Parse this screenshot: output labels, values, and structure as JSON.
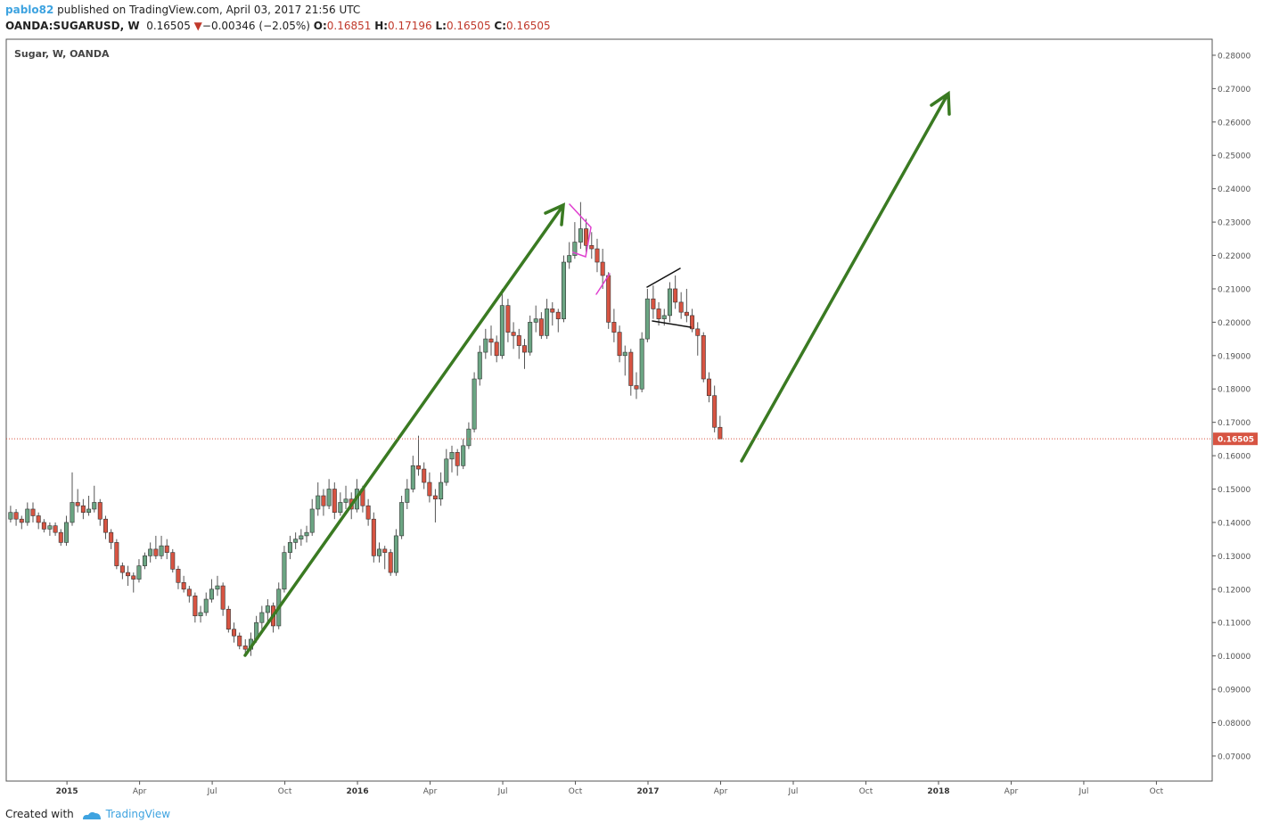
{
  "header": {
    "user": "pablo82",
    "published": " published on TradingView.com, April 03, 2017 21:56 UTC",
    "symbol": "OANDA:SUGARUSD, W",
    "price": "0.16505",
    "arrow": "▼",
    "change": "−0.00346 (−2.05%)",
    "o_label": "O:",
    "o": "0.16851",
    "h_label": "H:",
    "h": "0.17196",
    "l_label": "L:",
    "l": "0.16505",
    "c_label": "C:",
    "c": "0.16505"
  },
  "footer": {
    "created": "Created with",
    "brand": "TradingView"
  },
  "chart_data": {
    "type": "candlestick",
    "title": "Sugar, W, OANDA",
    "up_color": "#6ba583",
    "down_color": "#d75442",
    "last_price": 0.16505,
    "last_color": "#d75442",
    "xlim": [
      2014.791,
      2018.942
    ],
    "ylim": [
      0.0625,
      0.2848
    ],
    "xticks": [
      2015,
      {
        "value": 2015.25,
        "label": "Apr"
      },
      {
        "value": 2015.5,
        "label": "Jul"
      },
      {
        "value": 2015.75,
        "label": "Oct"
      },
      2016,
      {
        "value": 2016.25,
        "label": "Apr"
      },
      {
        "value": 2016.5,
        "label": "Jul"
      },
      {
        "value": 2016.75,
        "label": "Oct"
      },
      2017,
      {
        "value": 2017.25,
        "label": "Apr"
      },
      {
        "value": 2017.5,
        "label": "Jul"
      },
      {
        "value": 2017.75,
        "label": "Oct"
      },
      2018,
      {
        "value": 2018.25,
        "label": "Apr"
      },
      {
        "value": 2018.5,
        "label": "Jul"
      },
      {
        "value": 2018.75,
        "label": "Oct"
      }
    ],
    "yticks": [
      {
        "value": 0.07,
        "label": "0.07000"
      },
      {
        "value": 0.08,
        "label": "0.08000"
      },
      {
        "value": 0.09,
        "label": "0.09000"
      },
      {
        "value": 0.1,
        "label": "0.10000"
      },
      {
        "value": 0.11,
        "label": "0.11000"
      },
      {
        "value": 0.12,
        "label": "0.12000"
      },
      {
        "value": 0.13,
        "label": "0.13000"
      },
      {
        "value": 0.14,
        "label": "0.14000"
      },
      {
        "value": 0.15,
        "label": "0.15000"
      },
      {
        "value": 0.16,
        "label": "0.16000"
      },
      {
        "value": 0.17,
        "label": "0.17000"
      },
      {
        "value": 0.18,
        "label": "0.18000"
      },
      {
        "value": 0.19,
        "label": "0.19000"
      },
      {
        "value": 0.2,
        "label": "0.20000"
      },
      {
        "value": 0.21,
        "label": "0.21000"
      },
      {
        "value": 0.22,
        "label": "0.22000"
      },
      {
        "value": 0.23,
        "label": "0.23000"
      },
      {
        "value": 0.24,
        "label": "0.24000"
      },
      {
        "value": 0.25,
        "label": "0.25000"
      },
      {
        "value": 0.26,
        "label": "0.26000"
      },
      {
        "value": 0.27,
        "label": "0.27000"
      },
      {
        "value": 0.28,
        "label": "0.28000"
      }
    ],
    "x": [
      2014.806,
      2014.825,
      2014.844,
      2014.864,
      2014.883,
      2014.902,
      2014.921,
      2014.941,
      2014.96,
      2014.979,
      2014.998,
      2015.018,
      2015.037,
      2015.056,
      2015.075,
      2015.094,
      2015.114,
      2015.133,
      2015.152,
      2015.171,
      2015.191,
      2015.21,
      2015.229,
      2015.248,
      2015.268,
      2015.287,
      2015.306,
      2015.325,
      2015.344,
      2015.364,
      2015.383,
      2015.402,
      2015.421,
      2015.441,
      2015.46,
      2015.479,
      2015.498,
      2015.518,
      2015.537,
      2015.556,
      2015.575,
      2015.594,
      2015.614,
      2015.633,
      2015.652,
      2015.671,
      2015.691,
      2015.71,
      2015.729,
      2015.748,
      2015.768,
      2015.787,
      2015.806,
      2015.825,
      2015.844,
      2015.864,
      2015.883,
      2015.902,
      2015.921,
      2015.941,
      2015.96,
      2015.979,
      2015.998,
      2016.018,
      2016.037,
      2016.056,
      2016.075,
      2016.094,
      2016.114,
      2016.133,
      2016.152,
      2016.171,
      2016.191,
      2016.21,
      2016.229,
      2016.248,
      2016.268,
      2016.287,
      2016.306,
      2016.325,
      2016.344,
      2016.364,
      2016.383,
      2016.402,
      2016.421,
      2016.441,
      2016.46,
      2016.479,
      2016.498,
      2016.518,
      2016.537,
      2016.556,
      2016.575,
      2016.594,
      2016.614,
      2016.633,
      2016.652,
      2016.671,
      2016.691,
      2016.71,
      2016.729,
      2016.748,
      2016.768,
      2016.787,
      2016.806,
      2016.825,
      2016.844,
      2016.864,
      2016.883,
      2016.902,
      2016.921,
      2016.941,
      2016.96,
      2016.979,
      2016.998,
      2017.018,
      2017.037,
      2017.056,
      2017.075,
      2017.094,
      2017.114,
      2017.133,
      2017.152,
      2017.171,
      2017.191,
      2017.21,
      2017.229,
      2017.248
    ],
    "ohlc": [
      [
        0.141,
        0.145,
        0.14,
        0.143
      ],
      [
        0.143,
        0.144,
        0.139,
        0.141
      ],
      [
        0.141,
        0.142,
        0.138,
        0.14
      ],
      [
        0.14,
        0.146,
        0.139,
        0.144
      ],
      [
        0.144,
        0.146,
        0.14,
        0.142
      ],
      [
        0.142,
        0.143,
        0.138,
        0.14
      ],
      [
        0.14,
        0.141,
        0.137,
        0.138
      ],
      [
        0.138,
        0.14,
        0.136,
        0.139
      ],
      [
        0.139,
        0.14,
        0.136,
        0.137
      ],
      [
        0.137,
        0.138,
        0.133,
        0.134
      ],
      [
        0.134,
        0.142,
        0.133,
        0.14
      ],
      [
        0.14,
        0.155,
        0.139,
        0.146
      ],
      [
        0.146,
        0.15,
        0.143,
        0.145
      ],
      [
        0.145,
        0.147,
        0.141,
        0.143
      ],
      [
        0.143,
        0.148,
        0.142,
        0.144
      ],
      [
        0.144,
        0.151,
        0.143,
        0.146
      ],
      [
        0.146,
        0.147,
        0.139,
        0.141
      ],
      [
        0.141,
        0.142,
        0.135,
        0.137
      ],
      [
        0.137,
        0.138,
        0.132,
        0.134
      ],
      [
        0.134,
        0.135,
        0.126,
        0.127
      ],
      [
        0.127,
        0.128,
        0.123,
        0.125
      ],
      [
        0.125,
        0.127,
        0.121,
        0.124
      ],
      [
        0.124,
        0.125,
        0.119,
        0.123
      ],
      [
        0.123,
        0.129,
        0.122,
        0.127
      ],
      [
        0.127,
        0.131,
        0.126,
        0.13
      ],
      [
        0.13,
        0.134,
        0.128,
        0.132
      ],
      [
        0.132,
        0.136,
        0.129,
        0.13
      ],
      [
        0.13,
        0.136,
        0.129,
        0.133
      ],
      [
        0.133,
        0.135,
        0.129,
        0.131
      ],
      [
        0.131,
        0.132,
        0.125,
        0.126
      ],
      [
        0.126,
        0.127,
        0.12,
        0.122
      ],
      [
        0.122,
        0.124,
        0.119,
        0.12
      ],
      [
        0.12,
        0.121,
        0.116,
        0.118
      ],
      [
        0.118,
        0.119,
        0.11,
        0.112
      ],
      [
        0.112,
        0.115,
        0.11,
        0.113
      ],
      [
        0.113,
        0.119,
        0.112,
        0.117
      ],
      [
        0.117,
        0.123,
        0.116,
        0.12
      ],
      [
        0.12,
        0.124,
        0.118,
        0.121
      ],
      [
        0.121,
        0.122,
        0.112,
        0.114
      ],
      [
        0.114,
        0.115,
        0.107,
        0.108
      ],
      [
        0.108,
        0.11,
        0.104,
        0.106
      ],
      [
        0.106,
        0.107,
        0.102,
        0.103
      ],
      [
        0.103,
        0.105,
        0.1,
        0.102
      ],
      [
        0.102,
        0.107,
        0.1,
        0.105
      ],
      [
        0.105,
        0.112,
        0.104,
        0.11
      ],
      [
        0.11,
        0.115,
        0.108,
        0.113
      ],
      [
        0.113,
        0.117,
        0.11,
        0.115
      ],
      [
        0.115,
        0.116,
        0.107,
        0.109
      ],
      [
        0.109,
        0.122,
        0.108,
        0.12
      ],
      [
        0.12,
        0.133,
        0.119,
        0.131
      ],
      [
        0.131,
        0.136,
        0.129,
        0.134
      ],
      [
        0.134,
        0.137,
        0.132,
        0.135
      ],
      [
        0.135,
        0.138,
        0.133,
        0.136
      ],
      [
        0.136,
        0.139,
        0.134,
        0.137
      ],
      [
        0.137,
        0.147,
        0.136,
        0.144
      ],
      [
        0.144,
        0.152,
        0.142,
        0.148
      ],
      [
        0.148,
        0.15,
        0.142,
        0.145
      ],
      [
        0.145,
        0.153,
        0.144,
        0.15
      ],
      [
        0.15,
        0.152,
        0.141,
        0.143
      ],
      [
        0.143,
        0.149,
        0.142,
        0.146
      ],
      [
        0.146,
        0.151,
        0.144,
        0.147
      ],
      [
        0.147,
        0.149,
        0.141,
        0.144
      ],
      [
        0.144,
        0.153,
        0.143,
        0.15
      ],
      [
        0.15,
        0.151,
        0.143,
        0.145
      ],
      [
        0.145,
        0.147,
        0.139,
        0.141
      ],
      [
        0.141,
        0.143,
        0.128,
        0.13
      ],
      [
        0.13,
        0.134,
        0.128,
        0.132
      ],
      [
        0.132,
        0.133,
        0.126,
        0.131
      ],
      [
        0.131,
        0.132,
        0.124,
        0.125
      ],
      [
        0.125,
        0.138,
        0.124,
        0.136
      ],
      [
        0.136,
        0.148,
        0.135,
        0.146
      ],
      [
        0.146,
        0.153,
        0.144,
        0.15
      ],
      [
        0.15,
        0.16,
        0.149,
        0.157
      ],
      [
        0.157,
        0.166,
        0.154,
        0.156
      ],
      [
        0.156,
        0.158,
        0.15,
        0.152
      ],
      [
        0.152,
        0.155,
        0.146,
        0.148
      ],
      [
        0.148,
        0.15,
        0.14,
        0.147
      ],
      [
        0.147,
        0.155,
        0.145,
        0.152
      ],
      [
        0.152,
        0.162,
        0.151,
        0.159
      ],
      [
        0.159,
        0.163,
        0.155,
        0.161
      ],
      [
        0.161,
        0.162,
        0.154,
        0.157
      ],
      [
        0.157,
        0.165,
        0.156,
        0.163
      ],
      [
        0.163,
        0.17,
        0.162,
        0.168
      ],
      [
        0.168,
        0.185,
        0.167,
        0.183
      ],
      [
        0.183,
        0.193,
        0.181,
        0.191
      ],
      [
        0.191,
        0.198,
        0.189,
        0.195
      ],
      [
        0.195,
        0.199,
        0.19,
        0.194
      ],
      [
        0.194,
        0.196,
        0.188,
        0.19
      ],
      [
        0.19,
        0.21,
        0.189,
        0.205
      ],
      [
        0.205,
        0.207,
        0.194,
        0.197
      ],
      [
        0.197,
        0.2,
        0.192,
        0.196
      ],
      [
        0.196,
        0.198,
        0.189,
        0.193
      ],
      [
        0.193,
        0.195,
        0.186,
        0.191
      ],
      [
        0.191,
        0.202,
        0.19,
        0.2
      ],
      [
        0.2,
        0.205,
        0.197,
        0.201
      ],
      [
        0.201,
        0.203,
        0.195,
        0.196
      ],
      [
        0.196,
        0.207,
        0.195,
        0.204
      ],
      [
        0.204,
        0.206,
        0.199,
        0.203
      ],
      [
        0.203,
        0.204,
        0.197,
        0.201
      ],
      [
        0.201,
        0.22,
        0.2,
        0.218
      ],
      [
        0.218,
        0.224,
        0.216,
        0.22
      ],
      [
        0.22,
        0.23,
        0.219,
        0.224
      ],
      [
        0.224,
        0.236,
        0.222,
        0.228
      ],
      [
        0.228,
        0.231,
        0.221,
        0.223
      ],
      [
        0.223,
        0.227,
        0.219,
        0.222
      ],
      [
        0.222,
        0.225,
        0.215,
        0.218
      ],
      [
        0.218,
        0.222,
        0.21,
        0.214
      ],
      [
        0.214,
        0.215,
        0.198,
        0.2
      ],
      [
        0.2,
        0.204,
        0.194,
        0.197
      ],
      [
        0.197,
        0.199,
        0.188,
        0.19
      ],
      [
        0.19,
        0.193,
        0.184,
        0.191
      ],
      [
        0.191,
        0.192,
        0.178,
        0.181
      ],
      [
        0.181,
        0.185,
        0.177,
        0.18
      ],
      [
        0.18,
        0.197,
        0.179,
        0.195
      ],
      [
        0.195,
        0.21,
        0.194,
        0.207
      ],
      [
        0.207,
        0.211,
        0.201,
        0.204
      ],
      [
        0.204,
        0.206,
        0.199,
        0.201
      ],
      [
        0.201,
        0.204,
        0.199,
        0.202
      ],
      [
        0.202,
        0.212,
        0.2,
        0.21
      ],
      [
        0.21,
        0.214,
        0.204,
        0.206
      ],
      [
        0.206,
        0.209,
        0.201,
        0.203
      ],
      [
        0.203,
        0.21,
        0.2,
        0.202
      ],
      [
        0.202,
        0.204,
        0.197,
        0.198
      ],
      [
        0.198,
        0.2,
        0.19,
        0.196
      ],
      [
        0.196,
        0.197,
        0.182,
        0.183
      ],
      [
        0.183,
        0.185,
        0.176,
        0.178
      ],
      [
        0.178,
        0.181,
        0.167,
        0.16851
      ],
      [
        0.16851,
        0.17196,
        0.16505,
        0.16505
      ]
    ]
  }
}
